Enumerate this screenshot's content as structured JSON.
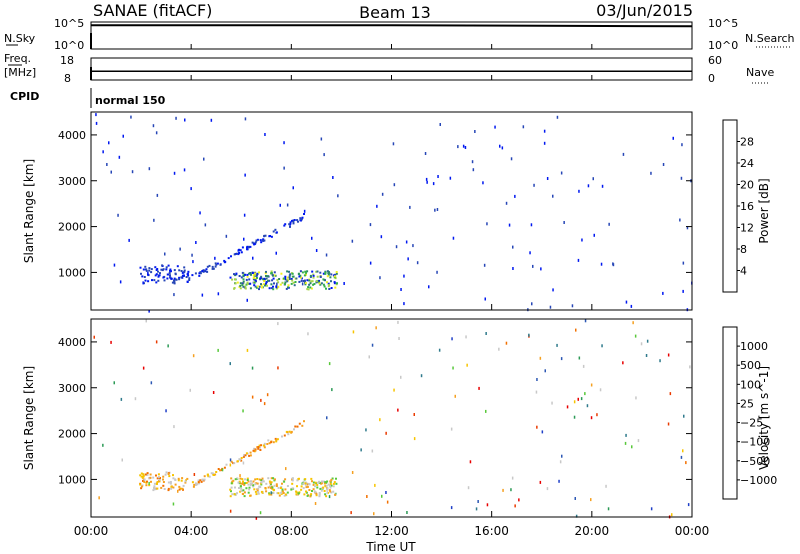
{
  "header": {
    "station": "SANAE (fitACF)",
    "beam": "Beam 13",
    "date": "03/Jun/2015"
  },
  "strips": {
    "nsky_label": "N.Sky",
    "nsky_ticks": [
      "10^5",
      "10^0"
    ],
    "nsearch_label": "N.Search",
    "nsearch_ticks": [
      "10^5",
      "10^0"
    ],
    "freq_label": "Freq.",
    "freq_unit": "[MHz]",
    "freq_ticks": [
      "18",
      "8"
    ],
    "nave_label": "Nave",
    "nave_ticks": [
      "60",
      "0"
    ],
    "cpid_label": "CPID",
    "cpid_value": "normal 150"
  },
  "panels": {
    "power": {
      "ylabel": "Slant Range [km]",
      "cbar_label": "Power [dB]",
      "cbar_ticks": [
        "28",
        "24",
        "20",
        "16",
        "12",
        "8",
        "4"
      ],
      "cbar_colors": [
        "#0018f0",
        "#2646b6",
        "#2f6b8d",
        "#2b8a63",
        "#34b04a",
        "#a6d44a",
        "#f2f220",
        "#f9c000",
        "#f59220",
        "#f36a00",
        "#ea3a00",
        "#e80000"
      ]
    },
    "velocity": {
      "ylabel": "Slant Range [km]",
      "cbar_label": "Velocity [m s^-1]",
      "cbar_ticks": [
        "1000",
        "500",
        "100",
        "25",
        "−25",
        "−100",
        "−500",
        "−1000"
      ],
      "cbar_colors": [
        "#1f3fc8",
        "#2c57b4",
        "#2f7a8c",
        "#2b9a55",
        "#58c83a",
        "#c8c8c8",
        "#c8c8c8",
        "#f7c400",
        "#f5a020",
        "#f27000",
        "#ea3a00",
        "#e80000"
      ]
    }
  },
  "xaxis": {
    "label": "Time UT",
    "ticks": [
      "00:00",
      "04:00",
      "08:00",
      "12:00",
      "16:00",
      "20:00",
      "00:00"
    ]
  },
  "chart_data": [
    {
      "type": "heatmap",
      "title": "Power",
      "x_range_hours": [
        0,
        24
      ],
      "y_range_km": [
        180,
        4500
      ],
      "y_ticks": [
        1000,
        2000,
        3000,
        4000
      ],
      "colorbar": {
        "label": "Power [dB]",
        "range": [
          0,
          32
        ]
      },
      "features": [
        {
          "name": "main echo band",
          "x_hours": [
            5.5,
            9.8
          ],
          "y_km": [
            650,
            1050
          ],
          "value_db": [
            4,
            22
          ]
        },
        {
          "name": "rising echo trace",
          "x_hours": [
            4.0,
            8.5
          ],
          "y_km": [
            900,
            2250
          ],
          "value_db": [
            3,
            9
          ]
        },
        {
          "name": "early echo",
          "x_hours": [
            1.9,
            3.9
          ],
          "y_km": [
            780,
            1180
          ],
          "value_db": [
            3,
            10
          ]
        }
      ]
    },
    {
      "type": "heatmap",
      "title": "Velocity",
      "x_range_hours": [
        0,
        24
      ],
      "y_range_km": [
        180,
        4500
      ],
      "y_ticks": [
        1000,
        2000,
        3000,
        4000
      ],
      "colorbar": {
        "label": "Velocity [m s^-1]",
        "range": [
          -1000,
          1000
        ]
      },
      "features": [
        {
          "name": "main echo band",
          "x_hours": [
            5.5,
            9.8
          ],
          "y_km": [
            650,
            1050
          ],
          "value_ms": [
            -100,
            100
          ]
        },
        {
          "name": "rising echo trace",
          "x_hours": [
            4.0,
            8.5
          ],
          "y_km": [
            900,
            2250
          ],
          "value_ms": [
            -200,
            50
          ]
        },
        {
          "name": "early echo",
          "x_hours": [
            1.9,
            3.9
          ],
          "y_km": [
            780,
            1180
          ],
          "value_ms": [
            -500,
            0
          ]
        }
      ]
    },
    {
      "type": "line",
      "title": "N.Sky / N.Search",
      "x_range_hours": [
        0,
        24
      ],
      "series": [
        {
          "x": [
            0,
            6,
            12,
            18,
            24
          ],
          "y_log10": [
            4.4,
            4.4,
            4.4,
            4.3,
            4.2
          ]
        }
      ]
    },
    {
      "type": "line",
      "title": "Freq. / Nave",
      "x_range_hours": [
        0,
        24
      ],
      "series": [
        {
          "x": [
            0,
            24
          ],
          "freq_mhz": [
            12.0,
            12.0
          ]
        },
        {
          "x": [
            0,
            24
          ],
          "nave": [
            24,
            24
          ]
        }
      ]
    }
  ]
}
